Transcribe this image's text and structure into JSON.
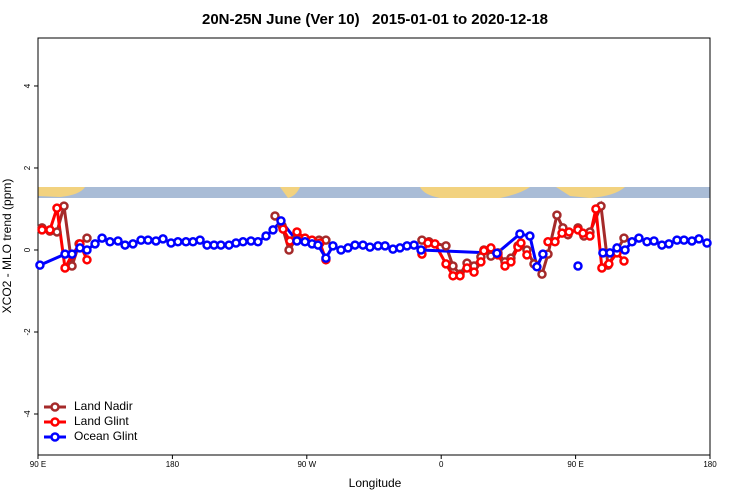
{
  "chart_data": {
    "type": "line",
    "title": "20N-25N June (Ver 10)   2015-01-01 to 2020-12-18",
    "xlabel": "Longitude",
    "ylabel": "XCO2 - MLO trend (ppm)",
    "xlim": [
      90,
      540
    ],
    "xticks": [
      {
        "value": 90,
        "label": "90 E"
      },
      180,
      {
        "value": 270,
        "label": "90 W"
      },
      {
        "value": 360,
        "label": "0"
      },
      {
        "value": 450,
        "label": "90 E"
      },
      {
        "value": 540,
        "label": "180"
      }
    ],
    "ylim": [
      -5,
      5.17
    ],
    "yticks": [
      -4,
      -2,
      0,
      2,
      4
    ],
    "legend": "bottom-left",
    "series": [
      {
        "name": "Land Nadir",
        "color": "#a52a2a",
        "x": [
          92.7,
          98.0,
          102.7,
          107.4,
          112.8,
          117.5,
          122.8,
          190,
          248.7,
          253.4,
          258.1,
          262.8,
          268.8,
          273.5,
          278.2,
          282.8,
          380,
          347.1,
          351.8,
          363.2,
          367.9,
          372.6,
          377.3,
          382.0,
          386.6,
          388.6,
          393.3,
          398.0,
          402.7,
          406.7,
          411.4,
          417.4,
          422.1,
          427.5,
          431.5,
          437.5,
          441.5,
          444.9,
          451.6,
          455.6,
          459.6,
          467.0,
          471.7,
          477.1,
          482.4
        ],
        "values": [
          0.54,
          0.46,
          0.44,
          1.07,
          -0.39,
          0.15,
          0.29,
          null,
          0.83,
          0.59,
          0.0,
          0.27,
          0.22,
          0.2,
          0.24,
          0.24,
          null,
          0.24,
          0.2,
          0.1,
          -0.39,
          -0.59,
          -0.32,
          -0.39,
          -0.17,
          0.0,
          -0.15,
          -0.07,
          -0.29,
          -0.2,
          0.1,
          0.0,
          -0.34,
          -0.59,
          -0.1,
          0.85,
          0.54,
          0.37,
          0.54,
          0.34,
          0.44,
          1.07,
          -0.37,
          -0.05,
          0.29
        ]
      },
      {
        "name": "Land Glint",
        "color": "#ff0000",
        "x": [
          92.7,
          98.0,
          102.7,
          108.1,
          112.8,
          118.1,
          122.8,
          190,
          254.1,
          258.7,
          263.4,
          268.8,
          273.5,
          278.8,
          282.8,
          380,
          347.1,
          351.1,
          355.8,
          363.2,
          367.9,
          372.6,
          377.3,
          382.0,
          386.6,
          388.6,
          393.3,
          398.0,
          402.7,
          406.7,
          411.4,
          413.4,
          417.4,
          425,
          431.5,
          436.2,
          440.9,
          445.6,
          451.6,
          454.9,
          459.6,
          463.6,
          467.6,
          472.3,
          477.7,
          482.4
        ],
        "values": [
          0.49,
          0.49,
          1.02,
          -0.44,
          -0.12,
          0.15,
          -0.24,
          null,
          0.51,
          0.22,
          0.44,
          0.29,
          0.24,
          0.17,
          -0.24,
          null,
          -0.1,
          0.17,
          0.15,
          -0.34,
          -0.63,
          -0.63,
          -0.44,
          -0.54,
          -0.29,
          -0.02,
          0.05,
          -0.12,
          -0.39,
          -0.29,
          0.07,
          0.17,
          -0.12,
          null,
          0.2,
          0.2,
          0.41,
          0.44,
          0.49,
          0.41,
          0.34,
          1.0,
          -0.44,
          -0.34,
          -0.07,
          -0.27
        ]
      },
      {
        "name": "Ocean Glint",
        "color": "#0000ff",
        "x": [
          91.3,
          108.1,
          112.8,
          118.1,
          122.8,
          128.2,
          132.9,
          138.2,
          143.6,
          148.3,
          153.6,
          159.0,
          163.7,
          169.0,
          173.7,
          179.1,
          183.7,
          189.1,
          193.8,
          198.5,
          203.2,
          207.9,
          212.5,
          217.9,
          222.6,
          227.3,
          232.6,
          237.3,
          242.7,
          247.4,
          252.7,
          263.4,
          268.8,
          273.5,
          277.5,
          282.8,
          287.5,
          292.9,
          297.6,
          302.3,
          307.6,
          312.3,
          317.7,
          322.4,
          327.7,
          332.4,
          337.1,
          341.8,
          346.5,
          397.3,
          412.7,
          419.4,
          424.1,
          428.1,
          440,
          451.6,
          460,
          468.3,
          473.0,
          477.7,
          483.1,
          487.8,
          492.4,
          497.8,
          502.5,
          507.8,
          512.5,
          517.9,
          522.6,
          527.9,
          532.6,
          538.0
        ],
        "values": [
          -0.37,
          -0.1,
          -0.1,
          0.05,
          0.0,
          0.15,
          0.29,
          0.2,
          0.22,
          0.12,
          0.15,
          0.24,
          0.24,
          0.22,
          0.27,
          0.17,
          0.2,
          0.2,
          0.2,
          0.24,
          0.12,
          0.12,
          0.12,
          0.12,
          0.17,
          0.2,
          0.22,
          0.2,
          0.34,
          0.49,
          0.71,
          0.22,
          0.2,
          0.15,
          0.12,
          -0.2,
          0.1,
          0.0,
          0.05,
          0.12,
          0.12,
          0.07,
          0.1,
          0.1,
          0.02,
          0.05,
          0.1,
          0.12,
          0.0,
          -0.08,
          0.39,
          0.34,
          -0.41,
          -0.1,
          null,
          -0.39,
          null,
          -0.07,
          -0.07,
          0.05,
          0.0,
          0.2,
          0.29,
          0.2,
          0.22,
          0.12,
          0.15,
          0.24,
          0.24,
          0.22,
          0.27,
          0.17
        ]
      }
    ]
  }
}
